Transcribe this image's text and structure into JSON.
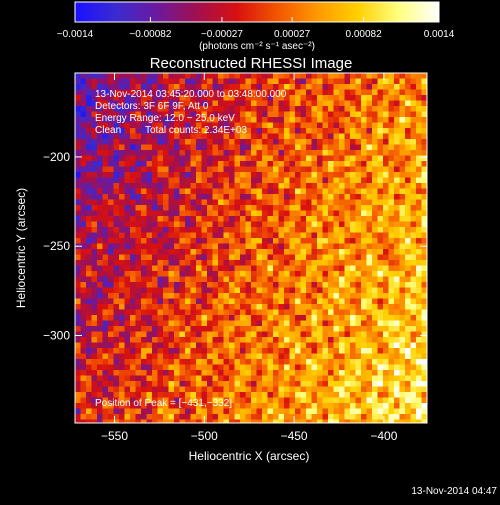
{
  "chart_data": {
    "type": "heatmap",
    "title": "Reconstructed RHESSI Image",
    "xlabel": "Heliocentric X (arcsec)",
    "ylabel": "Heliocentric Y (arcsec)",
    "xlim": [
      -572,
      -376
    ],
    "ylim": [
      -349,
      -153
    ],
    "x_ticks": [
      -550,
      -500,
      -450,
      -400
    ],
    "x_tick_labels": [
      "−550",
      "−500",
      "−450",
      "−400"
    ],
    "y_ticks": [
      -200,
      -250,
      -300
    ],
    "y_tick_labels": [
      "−200",
      "−250",
      "−300"
    ],
    "colorbar": {
      "range": [
        -0.0014,
        0.0014
      ],
      "ticks": [
        -0.0014,
        -0.00082,
        -0.00027,
        0.00027,
        0.00082,
        0.0014
      ],
      "tick_labels": [
        "−0.0014",
        "−0.00082",
        "−0.00027",
        "0.00027",
        "0.00082",
        "0.0014"
      ],
      "label": "(photons cm⁻² s⁻¹ asec⁻²)",
      "colors": [
        "#1a10ff",
        "#3a2bd0",
        "#6a1aa0",
        "#a01050",
        "#d81010",
        "#f35500",
        "#ff9900",
        "#ffd000",
        "#ffff80",
        "#ffffff"
      ]
    },
    "annotations": {
      "time": "13-Nov-2014 03:45:20.000 to 03:48:00.000",
      "detectors": "Detectors: 3F 6F 9F, Att 0",
      "energy": "Energy Range: 12.0 − 25.0 keV",
      "method": "Clean",
      "counts": "Total counts: 2.34E+03",
      "peak": "Position of Peak = [−431,−332]"
    },
    "peak_position": [
      -431,
      -332
    ],
    "timestamp": "13-Nov-2014 04:47"
  }
}
